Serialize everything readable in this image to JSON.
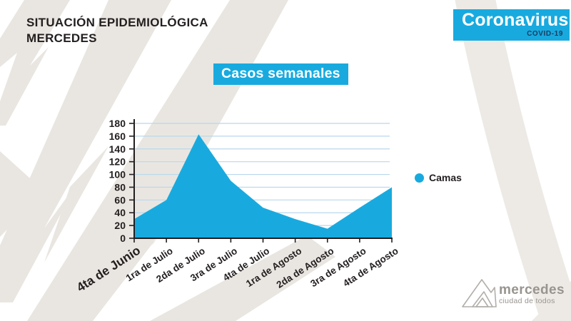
{
  "header": {
    "title_line1": "SITUACIÓN EPIDEMIOLÓGICA",
    "title_line2": "MERCEDES",
    "badge": {
      "title": "Coronavirus",
      "subtitle": "COVID-19"
    }
  },
  "chart_title": "Casos semanales",
  "chart_data": {
    "type": "area",
    "title": "Casos semanales",
    "categories": [
      "4ta de Junio",
      "1ra de Julio",
      "2da de Julio",
      "3ra de Julio",
      "4ta de Julio",
      "1ra de Agosto",
      "2da de Agosto",
      "3ra de Agosto",
      "4ta de Agosto"
    ],
    "series": [
      {
        "name": "Camas",
        "values": [
          30,
          60,
          163,
          90,
          48,
          30,
          15,
          48,
          80
        ]
      }
    ],
    "xlabel": "",
    "ylabel": "",
    "ylim": [
      0,
      180
    ],
    "ytick_step": 20,
    "grid": true,
    "legend_position": "right"
  },
  "footer_logo": {
    "name": "mercedes",
    "tagline": "ciudad de todos"
  },
  "colors": {
    "accent": "#18aadf",
    "covid_subtitle": "#1b3c60",
    "text_dark": "#231f20",
    "grid_line": "#b9d8ec",
    "bg_shape": "#e9e6e1",
    "bg_arc": "#edeae6",
    "logo_gray": "#98948f",
    "logo_stroke": "#b2aeaa"
  }
}
